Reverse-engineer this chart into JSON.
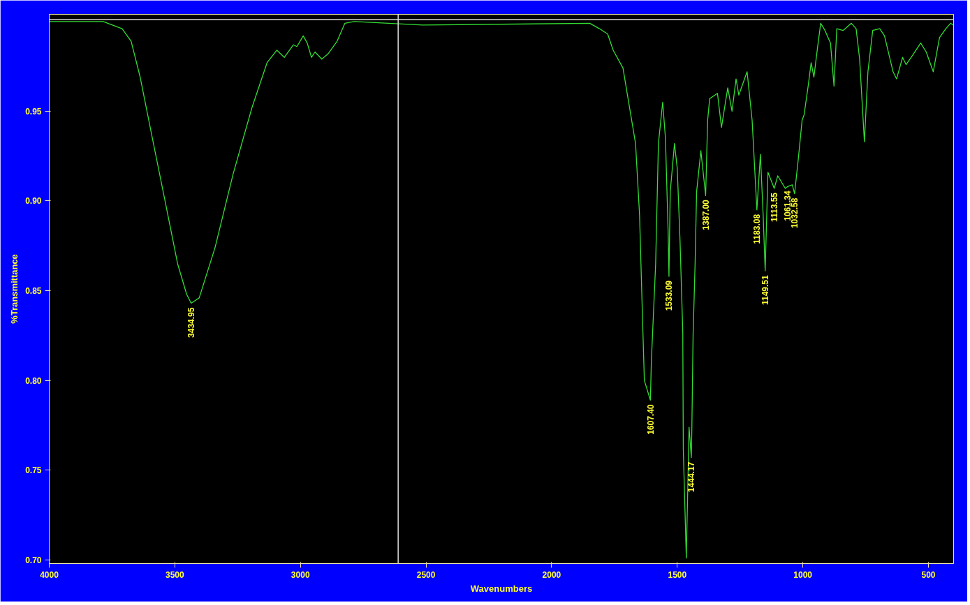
{
  "chart_data": {
    "type": "line",
    "xlabel": "Wavenumbers",
    "ylabel": "%Transmittance",
    "color": "#33dd33",
    "xlim": [
      4000,
      400
    ],
    "ylim": [
      0.698,
      1.004
    ],
    "xticks": [
      4000,
      3500,
      3000,
      2500,
      2000,
      1500,
      1000,
      500
    ],
    "yticks": [
      {
        "value": 0.7,
        "label": "0.70"
      },
      0.75,
      {
        "value": 0.8,
        "label": "0.80"
      },
      0.85,
      {
        "value": 0.9,
        "label": "0.90"
      },
      0.95
    ],
    "x": [
      4000,
      3785,
      3710,
      3674,
      3638,
      3588,
      3539,
      3489,
      3453,
      3435,
      3403,
      3340,
      3268,
      3193,
      3133,
      3094,
      3064,
      3028,
      3014,
      2989,
      2973,
      2956,
      2942,
      2915,
      2890,
      2854,
      2823,
      2787,
      2514,
      1848,
      1810,
      1777,
      1755,
      1716,
      1697,
      1666,
      1650,
      1639,
      1631,
      1607,
      1603,
      1586,
      1575,
      1558,
      1547,
      1536,
      1533,
      1528,
      1511,
      1500,
      1489,
      1478,
      1476,
      1464,
      1453,
      1444,
      1442,
      1437,
      1429,
      1423,
      1406,
      1387,
      1379,
      1371,
      1340,
      1324,
      1299,
      1282,
      1266,
      1255,
      1222,
      1202,
      1183,
      1169,
      1158,
      1150,
      1139,
      1114,
      1100,
      1070,
      1061,
      1042,
      1033,
      1017,
      1003,
      995,
      978,
      967,
      956,
      942,
      929,
      912,
      890,
      876,
      865,
      840,
      807,
      788,
      774,
      755,
      741,
      722,
      694,
      675,
      641,
      627,
      603,
      589,
      564,
      531,
      509,
      481,
      456,
      431,
      412,
      401
    ],
    "values": [
      1.0,
      1.0,
      0.996,
      0.989,
      0.969,
      0.934,
      0.9,
      0.865,
      0.848,
      0.843,
      0.846,
      0.874,
      0.915,
      0.952,
      0.977,
      0.984,
      0.98,
      0.987,
      0.986,
      0.992,
      0.988,
      0.98,
      0.983,
      0.979,
      0.982,
      0.989,
      0.999,
      1.0,
      0.998,
      0.999,
      0.996,
      0.993,
      0.984,
      0.974,
      0.958,
      0.932,
      0.892,
      0.838,
      0.8,
      0.789,
      0.811,
      0.865,
      0.932,
      0.955,
      0.935,
      0.881,
      0.858,
      0.905,
      0.932,
      0.918,
      0.878,
      0.827,
      0.762,
      0.701,
      0.774,
      0.757,
      0.772,
      0.825,
      0.865,
      0.905,
      0.928,
      0.903,
      0.945,
      0.957,
      0.96,
      0.941,
      0.963,
      0.95,
      0.968,
      0.959,
      0.972,
      0.945,
      0.895,
      0.926,
      0.892,
      0.861,
      0.916,
      0.907,
      0.914,
      0.907,
      0.908,
      0.909,
      0.904,
      0.925,
      0.945,
      0.948,
      0.965,
      0.977,
      0.969,
      0.985,
      0.999,
      0.995,
      0.988,
      0.964,
      0.996,
      0.995,
      0.999,
      0.996,
      0.979,
      0.933,
      0.972,
      0.995,
      0.996,
      0.992,
      0.972,
      0.968,
      0.98,
      0.976,
      0.981,
      0.988,
      0.983,
      0.972,
      0.991,
      0.996,
      0.999,
      0.998
    ],
    "ref_lines": [
      {
        "axis": "x",
        "value": 2611,
        "color": "#e0e0e0"
      },
      {
        "axis": "y",
        "value": 1.001,
        "color": "#e0e0e0"
      }
    ],
    "annotations": [
      {
        "text": "3434.95",
        "x": 3435,
        "y": 0.843
      },
      {
        "text": "1607.40",
        "x": 1607,
        "y": 0.789
      },
      {
        "text": "1533.09",
        "x": 1533,
        "y": 0.858
      },
      {
        "text": "1444.17",
        "x": 1444,
        "y": 0.757
      },
      {
        "text": "1387.00",
        "x": 1387,
        "y": 0.903
      },
      {
        "text": "1183.08",
        "x": 1183,
        "y": 0.895
      },
      {
        "text": "1149.51",
        "x": 1150,
        "y": 0.861
      },
      {
        "text": "1113.55",
        "x": 1114,
        "y": 0.907
      },
      {
        "text": "1061.34",
        "x": 1061,
        "y": 0.908
      },
      {
        "text": "1032.58",
        "x": 1033,
        "y": 0.904
      }
    ]
  }
}
